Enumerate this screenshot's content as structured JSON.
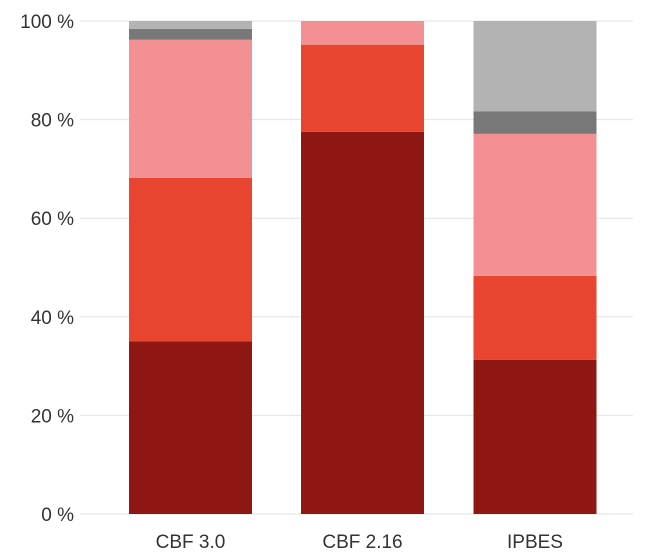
{
  "chart_data": {
    "type": "bar",
    "stacked": true,
    "categories": [
      "CBF 3.0",
      "CBF 2.16",
      "IPBES"
    ],
    "series": [
      {
        "color": "#8e1713",
        "values": [
          35,
          77.5,
          31.3
        ]
      },
      {
        "color": "#e84530",
        "values": [
          33.2,
          17.7,
          17
        ]
      },
      {
        "color": "#f39093",
        "values": [
          28,
          4.8,
          28.8
        ]
      },
      {
        "color": "#787878",
        "values": [
          2.2,
          0,
          4.6
        ]
      },
      {
        "color": "#b3b3b3",
        "values": [
          1.6,
          0,
          18.3
        ]
      }
    ],
    "yticks": [
      0,
      20,
      40,
      60,
      80,
      100
    ],
    "ytick_labels": [
      "0 %",
      "20 %",
      "40 %",
      "60 %",
      "80 %",
      "100 %"
    ],
    "ylim": [
      0,
      100
    ],
    "grid": true,
    "title": "",
    "xlabel": "",
    "ylabel": ""
  }
}
